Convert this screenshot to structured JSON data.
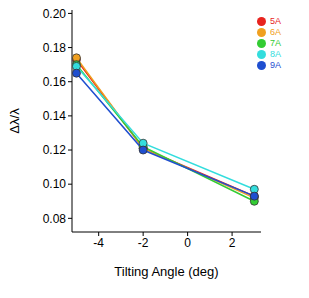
{
  "chart_data": {
    "type": "line",
    "x_label": "Tilting Angle (deg)",
    "y_label": "Δλ/λ",
    "x": [
      -5,
      -2,
      3
    ],
    "series": [
      {
        "name": "5A",
        "color": "#e8231e",
        "marker": "circle",
        "values": [
          0.173,
          0.121,
          0.093
        ]
      },
      {
        "name": "6A",
        "color": "#f0a020",
        "marker": "circle",
        "values": [
          0.174,
          0.121,
          0.092
        ]
      },
      {
        "name": "7A",
        "color": "#33cc33",
        "marker": "circle",
        "values": [
          0.17,
          0.122,
          0.09
        ]
      },
      {
        "name": "8A",
        "color": "#33dddd",
        "marker": "circle",
        "values": [
          0.169,
          0.124,
          0.097
        ]
      },
      {
        "name": "9A",
        "color": "#1f4fd0",
        "marker": "circle",
        "values": [
          0.165,
          0.12,
          0.093
        ]
      }
    ],
    "xlim": [
      -5.2,
      3.3
    ],
    "xticks": [
      -4,
      -2,
      0,
      2
    ],
    "ylim": [
      0.072,
      0.202
    ],
    "yticks": [
      0.08,
      {
        "value": 0.1,
        "label": "0.10"
      },
      0.12,
      0.14,
      0.16,
      0.18,
      {
        "value": 0.2,
        "label": "0.20"
      }
    ],
    "grid": false,
    "legend": "upper right"
  }
}
